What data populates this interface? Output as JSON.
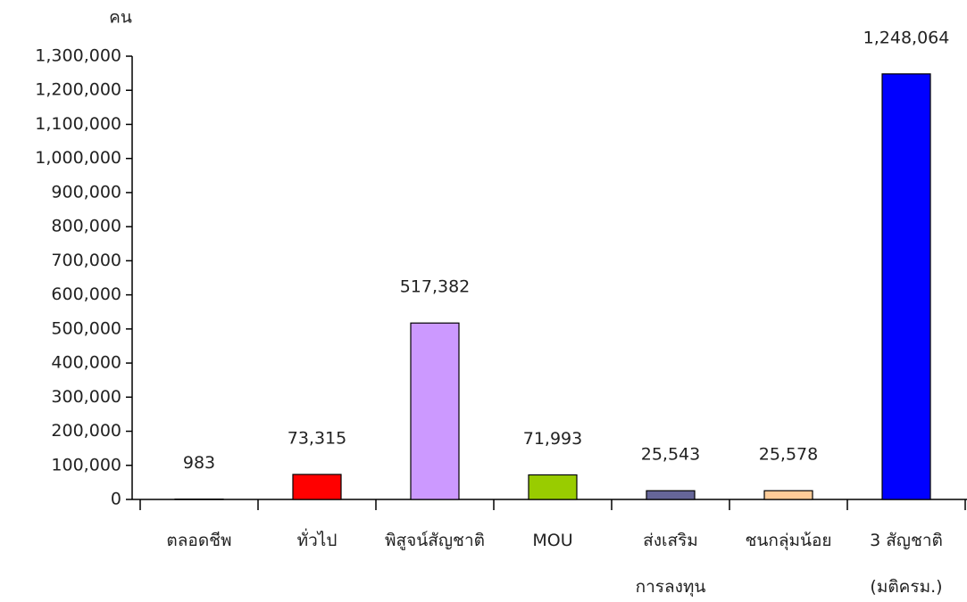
{
  "chart_data": {
    "type": "bar",
    "y_label": "คน",
    "categories": [
      "ตลอดชีพ",
      "ทั่วไป",
      "พิสูจน์สัญชาติ",
      "MOU",
      "ส่งเสริม\nการลงทุน",
      "ชนกลุ่มน้อย",
      "3 สัญชาติ\n(มติครม.)"
    ],
    "values": [
      983,
      73315,
      517382,
      71993,
      25543,
      25578,
      1248064
    ],
    "value_labels": [
      "983",
      "73,315",
      "517,382",
      "71,993",
      "25,543",
      "25,578",
      "1,248,064"
    ],
    "colors": [
      "#ffffff",
      "#ff0000",
      "#cc99ff",
      "#99cc00",
      "#666699",
      "#ffcc99",
      "#0000ff"
    ],
    "ylim": [
      0,
      1300000
    ],
    "yticks": [
      0,
      {
        "value": 100000,
        "label": "100,000"
      },
      {
        "value": 200000,
        "label": "200,000"
      },
      {
        "value": 300000,
        "label": "300,000"
      },
      {
        "value": 400000,
        "label": "400,000"
      },
      {
        "value": 500000,
        "label": "500,000"
      },
      {
        "value": 600000,
        "label": "600,000"
      },
      {
        "value": 700000,
        "label": "700,000"
      },
      {
        "value": 800000,
        "label": "800,000"
      },
      {
        "value": 900000,
        "label": "900,000"
      },
      {
        "value": 1000000,
        "label": "1,000,000"
      },
      {
        "value": 1100000,
        "label": "1,100,000"
      },
      {
        "value": 1200000,
        "label": "1,200,000"
      },
      {
        "value": 1300000,
        "label": "1,300,000"
      }
    ],
    "grid": false
  }
}
